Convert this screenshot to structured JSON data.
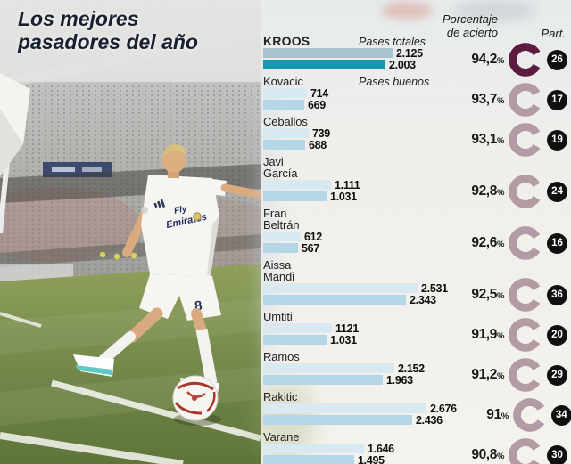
{
  "meta": {
    "title_line1": "Los mejores",
    "title_line2": "pasadores del año"
  },
  "labels": {
    "pct_line1": "Porcentaje",
    "pct_line2": "de acierto",
    "part": "Part.",
    "series_total": "Pases totales",
    "series_good": "Pases buenos",
    "percent_symbol": "%"
  },
  "photo": {
    "jersey_sponsor_line1": "Fly",
    "jersey_sponsor_line2": "Emirates",
    "shorts_number": "8"
  },
  "icons": {
    "accuracy_ring": "open-ring-gauge-icon",
    "matches_badge": "black-circle-number-badge",
    "corner_flag": "corner-flag-icon",
    "football": "football-icon"
  },
  "colors": {
    "bar_total": "#d9e9f1",
    "bar_good": "#b5d6e6",
    "bar_total_highlight": "#a7c3cd",
    "bar_good_highlight": "#1398b0",
    "ring": "#b39ba6",
    "ring_highlight": "#5c1b40",
    "badge_bg": "#101010",
    "title_color": "#18202f"
  },
  "players": [
    {
      "name_lines": [
        "KROOS"
      ],
      "series_label": "Pases totales",
      "totales": "2.125",
      "buenos": "2.003",
      "totales_val": 2125,
      "buenos_val": 2003,
      "pct": "94,2",
      "pct_val": 94.2,
      "part": "26",
      "highlight": true
    },
    {
      "name_lines": [
        "Kovacic"
      ],
      "series_label": "Pases buenos",
      "totales": "714",
      "buenos": "669",
      "totales_val": 714,
      "buenos_val": 669,
      "pct": "93,7",
      "pct_val": 93.7,
      "part": "17",
      "highlight": false
    },
    {
      "name_lines": [
        "Ceballos"
      ],
      "totales": "739",
      "buenos": "688",
      "totales_val": 739,
      "buenos_val": 688,
      "pct": "93,1",
      "pct_val": 93.1,
      "part": "19",
      "highlight": false
    },
    {
      "name_lines": [
        "Javi",
        "García"
      ],
      "totales": "1.111",
      "buenos": "1.031",
      "totales_val": 1111,
      "buenos_val": 1031,
      "pct": "92,8",
      "pct_val": 92.8,
      "part": "24",
      "highlight": false
    },
    {
      "name_lines": [
        "Fran",
        "Beltrán"
      ],
      "totales": "612",
      "buenos": "567",
      "totales_val": 612,
      "buenos_val": 567,
      "pct": "92,6",
      "pct_val": 92.6,
      "part": "16",
      "highlight": false
    },
    {
      "name_lines": [
        "Aissa",
        "Mandi"
      ],
      "totales": "2.531",
      "buenos": "2.343",
      "totales_val": 2531,
      "buenos_val": 2343,
      "pct": "92,5",
      "pct_val": 92.5,
      "part": "36",
      "highlight": false
    },
    {
      "name_lines": [
        "Umtiti"
      ],
      "totales": "1121",
      "buenos": "1.031",
      "totales_val": 1121,
      "buenos_val": 1031,
      "pct": "91,9",
      "pct_val": 91.9,
      "part": "20",
      "highlight": false
    },
    {
      "name_lines": [
        "Ramos"
      ],
      "totales": "2.152",
      "buenos": "1.963",
      "totales_val": 2152,
      "buenos_val": 1963,
      "pct": "91,2",
      "pct_val": 91.2,
      "part": "29",
      "highlight": false
    },
    {
      "name_lines": [
        "Rakitic"
      ],
      "totales": "2.676",
      "buenos": "2.436",
      "totales_val": 2676,
      "buenos_val": 2436,
      "pct": "91",
      "pct_val": 91.0,
      "part": "34",
      "highlight": false
    },
    {
      "name_lines": [
        "Varane"
      ],
      "totales": "1.646",
      "buenos": "1.495",
      "totales_val": 1646,
      "buenos_val": 1495,
      "pct": "90,8",
      "pct_val": 90.8,
      "part": "30",
      "highlight": false
    }
  ],
  "chart_data": {
    "type": "bar",
    "orientation": "horizontal",
    "title": "Los mejores pasadores del año",
    "categories": [
      "Kroos",
      "Kovacic",
      "Ceballos",
      "Javi García",
      "Fran Beltrán",
      "Aissa Mandi",
      "Umtiti",
      "Ramos",
      "Rakitic",
      "Varane"
    ],
    "series": [
      {
        "name": "Pases totales",
        "values": [
          2125,
          714,
          739,
          1111,
          612,
          2531,
          1121,
          2152,
          2676,
          1646
        ]
      },
      {
        "name": "Pases buenos",
        "values": [
          2003,
          669,
          688,
          1031,
          567,
          2343,
          1031,
          1963,
          2436,
          1495
        ]
      }
    ],
    "accuracy_pct": [
      94.2,
      93.7,
      93.1,
      92.8,
      92.6,
      92.5,
      91.9,
      91.2,
      91,
      90.8
    ],
    "matches_played": [
      26,
      17,
      19,
      24,
      16,
      36,
      20,
      29,
      34,
      30
    ],
    "value_labels_shown": true,
    "xlim": [
      0,
      2700
    ],
    "grid": false,
    "legend_position": "inline-first-two-rows"
  }
}
